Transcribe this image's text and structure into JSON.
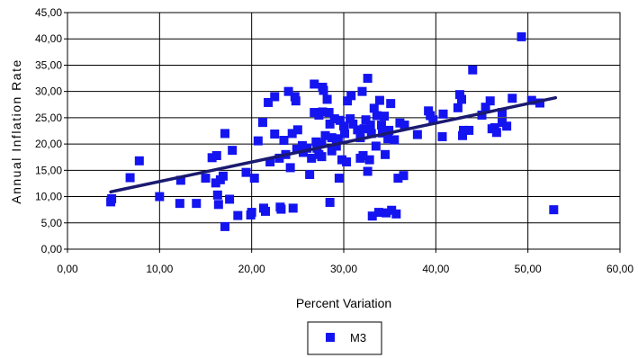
{
  "chart_data": {
    "type": "scatter",
    "xlabel": "Percent Variation",
    "ylabel": "Annual Inflation Rate",
    "xlim": [
      0,
      60
    ],
    "ylim": [
      0,
      45
    ],
    "x_ticks": [
      "0,00",
      "10,00",
      "20,00",
      "30,00",
      "40,00",
      "50,00",
      "60,00"
    ],
    "y_ticks": [
      "0,00",
      "5,00",
      "10,00",
      "15,00",
      "20,00",
      "25,00",
      "30,00",
      "35,00",
      "40,00",
      "45,00"
    ],
    "grid": true,
    "legend_position": "bottom",
    "colors": {
      "points": "#1414f0",
      "trendline": "#1a1a70",
      "grid": "#000000"
    },
    "trendline": {
      "x": [
        4.7,
        53.0
      ],
      "y": [
        10.9,
        28.8
      ]
    },
    "series": [
      {
        "name": "M3",
        "points": [
          [
            4.7,
            9.0
          ],
          [
            4.8,
            9.6
          ],
          [
            6.8,
            13.6
          ],
          [
            7.8,
            16.8
          ],
          [
            10.0,
            10.0
          ],
          [
            12.2,
            8.7
          ],
          [
            12.3,
            13.1
          ],
          [
            14.0,
            8.7
          ],
          [
            15.0,
            13.5
          ],
          [
            15.7,
            17.4
          ],
          [
            16.1,
            12.6
          ],
          [
            16.2,
            17.8
          ],
          [
            16.3,
            10.3
          ],
          [
            16.4,
            8.5
          ],
          [
            16.6,
            13.2
          ],
          [
            16.9,
            13.9
          ],
          [
            17.1,
            22.0
          ],
          [
            17.1,
            4.3
          ],
          [
            17.6,
            9.5
          ],
          [
            17.9,
            18.8
          ],
          [
            18.5,
            6.4
          ],
          [
            19.4,
            14.6
          ],
          [
            19.9,
            6.5
          ],
          [
            20.0,
            7.0
          ],
          [
            20.3,
            13.5
          ],
          [
            20.7,
            20.6
          ],
          [
            21.2,
            24.1
          ],
          [
            21.3,
            7.8
          ],
          [
            21.5,
            7.2
          ],
          [
            21.8,
            27.9
          ],
          [
            22.0,
            16.6
          ],
          [
            22.5,
            29.0
          ],
          [
            22.5,
            21.9
          ],
          [
            23.0,
            17.3
          ],
          [
            23.1,
            8.0
          ],
          [
            23.2,
            7.6
          ],
          [
            23.5,
            20.7
          ],
          [
            23.7,
            18.0
          ],
          [
            24.0,
            30.0
          ],
          [
            24.2,
            15.5
          ],
          [
            24.4,
            22.0
          ],
          [
            24.5,
            7.8
          ],
          [
            24.7,
            29.0
          ],
          [
            24.8,
            28.2
          ],
          [
            24.9,
            19.0
          ],
          [
            25.0,
            22.7
          ],
          [
            25.5,
            19.7
          ],
          [
            25.6,
            18.4
          ],
          [
            26.0,
            19.2
          ],
          [
            26.3,
            14.2
          ],
          [
            26.5,
            17.3
          ],
          [
            26.8,
            31.4
          ],
          [
            26.8,
            26.0
          ],
          [
            27.0,
            20.4
          ],
          [
            27.1,
            19.2
          ],
          [
            27.3,
            25.5
          ],
          [
            27.3,
            18.0
          ],
          [
            27.6,
            20.1
          ],
          [
            27.6,
            17.6
          ],
          [
            27.7,
            30.8
          ],
          [
            27.7,
            26.1
          ],
          [
            27.8,
            30.2
          ],
          [
            28.0,
            21.6
          ],
          [
            28.2,
            28.5
          ],
          [
            28.4,
            26.0
          ],
          [
            28.5,
            23.8
          ],
          [
            28.5,
            8.9
          ],
          [
            28.7,
            18.7
          ],
          [
            28.7,
            21.2
          ],
          [
            29.0,
            24.8
          ],
          [
            29.2,
            19.6
          ],
          [
            29.4,
            21.0
          ],
          [
            29.5,
            13.5
          ],
          [
            29.6,
            24.5
          ],
          [
            29.8,
            17.0
          ],
          [
            30.0,
            23.4
          ],
          [
            30.1,
            22.0
          ],
          [
            30.3,
            16.6
          ],
          [
            30.4,
            28.2
          ],
          [
            30.7,
            24.8
          ],
          [
            30.8,
            29.2
          ],
          [
            31.0,
            23.8
          ],
          [
            31.5,
            22.7
          ],
          [
            31.8,
            17.3
          ],
          [
            31.8,
            21.2
          ],
          [
            32.0,
            30.0
          ],
          [
            32.1,
            17.8
          ],
          [
            32.2,
            22.9
          ],
          [
            32.4,
            24.6
          ],
          [
            32.6,
            32.5
          ],
          [
            32.6,
            14.8
          ],
          [
            32.8,
            17.0
          ],
          [
            32.9,
            23.6
          ],
          [
            33.0,
            22.0
          ],
          [
            33.1,
            6.3
          ],
          [
            33.3,
            26.8
          ],
          [
            33.5,
            19.6
          ],
          [
            33.6,
            25.4
          ],
          [
            33.8,
            7.0
          ],
          [
            33.9,
            28.3
          ],
          [
            34.1,
            23.6
          ],
          [
            34.2,
            22.1
          ],
          [
            34.4,
            25.3
          ],
          [
            34.5,
            18.0
          ],
          [
            34.6,
            6.9
          ],
          [
            34.8,
            21.0
          ],
          [
            34.9,
            22.6
          ],
          [
            35.1,
            27.7
          ],
          [
            35.2,
            7.4
          ],
          [
            35.5,
            20.8
          ],
          [
            35.7,
            6.7
          ],
          [
            35.9,
            13.5
          ],
          [
            36.1,
            24.0
          ],
          [
            36.5,
            14.0
          ],
          [
            36.6,
            23.6
          ],
          [
            38.0,
            21.8
          ],
          [
            39.2,
            26.3
          ],
          [
            39.4,
            25.4
          ],
          [
            39.7,
            24.6
          ],
          [
            40.7,
            21.4
          ],
          [
            40.8,
            25.7
          ],
          [
            42.4,
            26.9
          ],
          [
            42.6,
            29.4
          ],
          [
            42.8,
            28.5
          ],
          [
            42.9,
            21.6
          ],
          [
            43.0,
            22.6
          ],
          [
            43.6,
            22.6
          ],
          [
            44.0,
            34.1
          ],
          [
            45.0,
            25.5
          ],
          [
            45.4,
            27.0
          ],
          [
            45.9,
            28.2
          ],
          [
            46.1,
            22.9
          ],
          [
            46.4,
            23.1
          ],
          [
            46.6,
            22.2
          ],
          [
            47.2,
            24.1
          ],
          [
            47.2,
            26.0
          ],
          [
            47.7,
            23.4
          ],
          [
            48.3,
            28.7
          ],
          [
            49.3,
            40.4
          ],
          [
            50.4,
            28.3
          ],
          [
            51.3,
            27.8
          ],
          [
            52.8,
            7.5
          ]
        ]
      }
    ]
  }
}
